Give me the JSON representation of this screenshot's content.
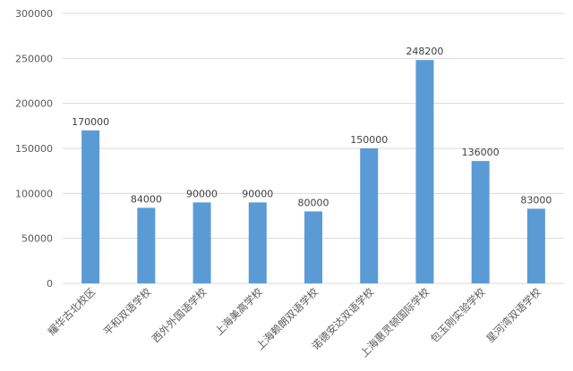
{
  "colors": {
    "bar": "#5B9BD5",
    "grid": "#D9D9D9",
    "axis_text": "#595959",
    "label_text": "#404040",
    "background": "#FFFFFF"
  },
  "chart_data": {
    "type": "bar",
    "title": "",
    "xlabel": "",
    "ylabel": "",
    "categories": [
      "耀华古北校区",
      "平和双语学校",
      "西外外国语学校",
      "上海美高学校",
      "上海赖朗双语学校",
      "诺德安达双语学校",
      "上海惠灵顿国际学校",
      "包玉刚实验学校",
      "星河湾双语学校"
    ],
    "values": [
      170000,
      84000,
      90000,
      90000,
      80000,
      150000,
      248200,
      136000,
      83000
    ],
    "data_labels": [
      "170000",
      "84000",
      "90000",
      "90000",
      "80000",
      "150000",
      "248200",
      "136000",
      "83000"
    ],
    "ylim": [
      0,
      300000
    ],
    "yticks": [
      0,
      50000,
      100000,
      150000,
      200000,
      250000,
      300000
    ],
    "ytick_labels": [
      "0",
      "50000",
      "100000",
      "150000",
      "200000",
      "250000",
      "300000"
    ],
    "grid": true,
    "legend": "none"
  }
}
